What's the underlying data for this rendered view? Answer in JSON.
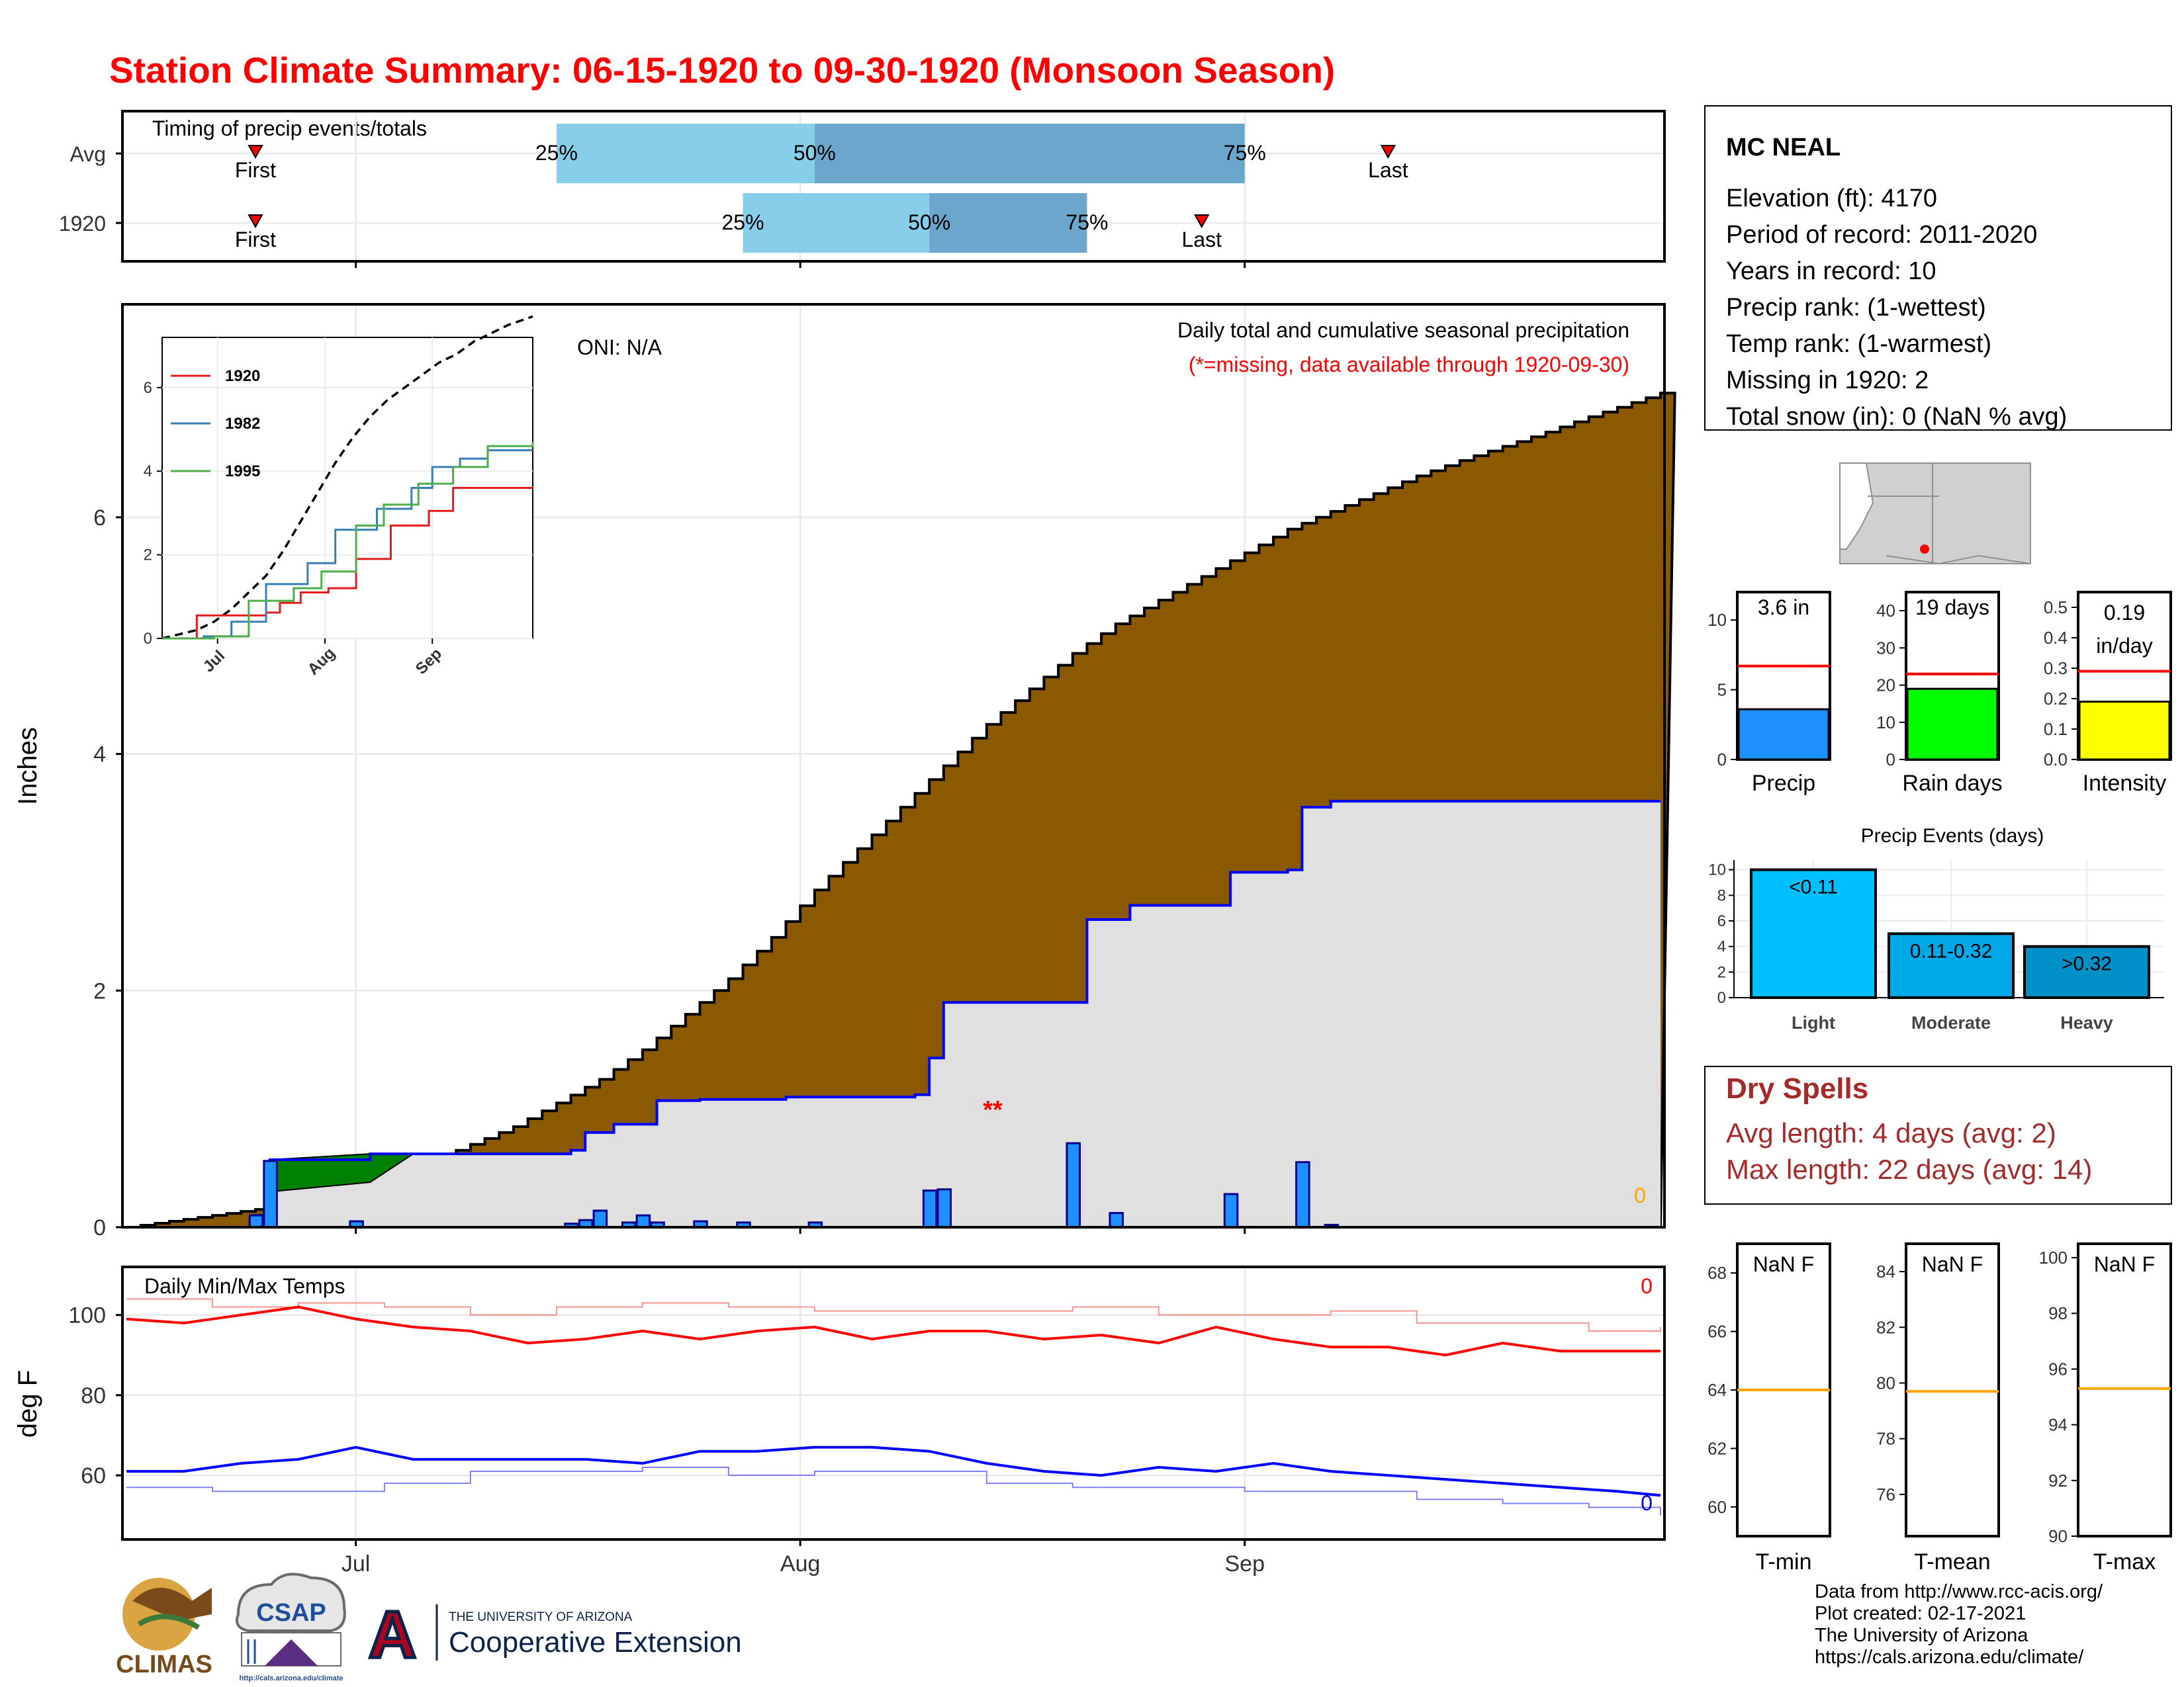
{
  "title": "Station Climate Summary: 06-15-1920 to 09-30-1920 (Monsoon Season)",
  "colors": {
    "title": "#ff0000",
    "cumulative_fill": "#8b5a00",
    "avg_fill": "#e0e0e0",
    "daily_bar": "#1e90ff",
    "surplus_green": "#008000",
    "tmax": "#ff0000",
    "tmin": "#0000ff",
    "avg_line": "#ff0000",
    "orange": "#ffa500",
    "dry_spell": "#a52a2a"
  },
  "timing_panel": {
    "label": "Timing of precip events/totals",
    "rows": [
      {
        "name": "Avg",
        "first_label": "First",
        "last_label": "Last",
        "q25": "25%",
        "q50": "50%",
        "q75": "75%",
        "first_day": 9,
        "q25_day": 30,
        "q50_day": 48,
        "q75_day": 78,
        "last_day": 88
      },
      {
        "name": "1920",
        "first_label": "First",
        "last_label": "Last",
        "q25": "25%",
        "q50": "50%",
        "q75": "75%",
        "first_day": 9,
        "q25_day": 43,
        "q50_day": 56,
        "q75_day": 67,
        "last_day": 75
      }
    ]
  },
  "main_panel": {
    "ylabel": "Inches",
    "oni": "ONI: N/A",
    "subtitle": "Daily total and cumulative seasonal precipitation",
    "missing_note": "(*=missing, data available through 1920-09-30)",
    "missing_marker": "**",
    "snow_zero": "0",
    "yticks": [
      "0",
      "2",
      "4",
      "6"
    ]
  },
  "months": [
    "Jul",
    "Aug",
    "Sep"
  ],
  "inset": {
    "legend": [
      "1920",
      "1982",
      "1995"
    ],
    "legend_colors": [
      "#e41a1c",
      "#377eb8",
      "#4daf4a"
    ],
    "yticks": [
      "0",
      "2",
      "4",
      "6"
    ],
    "months": [
      "Jul",
      "Aug",
      "Sep"
    ]
  },
  "temps_panel": {
    "label": "Daily Min/Max Temps",
    "ylabel": "deg F",
    "yticks": [
      "60",
      "80",
      "100"
    ],
    "tmax_missing": "0",
    "tmin_missing": "0"
  },
  "station": {
    "name": "MC NEAL",
    "lines": [
      "Elevation (ft): 4170",
      "Period of record: 2011-2020",
      "Years in record: 10",
      "Precip rank:  (1-wettest)",
      "Temp rank:  (1-warmest)",
      "Missing in 1920: 2",
      "Total snow (in): 0 (NaN % avg)"
    ]
  },
  "summary_bars": [
    {
      "label": "Precip",
      "value_label": "3.6 in",
      "value": 3.6,
      "avg": 6.7,
      "max": 12,
      "ticks": [
        "0",
        "5",
        "10"
      ],
      "tick_vals": [
        0,
        5,
        10
      ],
      "color": "#1e90ff"
    },
    {
      "label": "Rain days",
      "value_label": "19 days",
      "value": 19,
      "avg": 23,
      "max": 45,
      "ticks": [
        "0",
        "10",
        "20",
        "30",
        "40"
      ],
      "tick_vals": [
        0,
        10,
        20,
        30,
        40
      ],
      "color": "#00ff00"
    },
    {
      "label": "Intensity",
      "value_label": "0.19 in/day",
      "value_line1": "0.19",
      "value_line2": "in/day",
      "value": 0.19,
      "avg": 0.29,
      "max": 0.55,
      "ticks": [
        "0.0",
        "0.1",
        "0.2",
        "0.3",
        "0.4",
        "0.5"
      ],
      "tick_vals": [
        0,
        0.1,
        0.2,
        0.3,
        0.4,
        0.5
      ],
      "color": "#ffff00"
    }
  ],
  "events": {
    "title": "Precip Events (days)",
    "categories": [
      "Light",
      "Moderate",
      "Heavy"
    ],
    "bar_labels": [
      "<0.11",
      "0.11-0.32",
      ">0.32"
    ],
    "values": [
      10,
      5,
      4
    ],
    "colors": [
      "#00bfff",
      "#00a8e8",
      "#0090c8"
    ],
    "yticks": [
      "0",
      "2",
      "4",
      "6",
      "8",
      "10"
    ]
  },
  "dry_spells": {
    "title": "Dry Spells",
    "avg_length": "Avg length: 4 days (avg: 2)",
    "max_length": "Max length: 22 days (avg: 14)"
  },
  "temp_summary": [
    {
      "label": "T-min",
      "value_label": "NaN F",
      "avg": 64.0,
      "min": 59,
      "max": 69,
      "ticks": [
        "60",
        "62",
        "64",
        "66",
        "68"
      ],
      "tick_vals": [
        60,
        62,
        64,
        66,
        68
      ]
    },
    {
      "label": "T-mean",
      "value_label": "NaN F",
      "avg": 79.7,
      "min": 74.5,
      "max": 85,
      "ticks": [
        "76",
        "78",
        "80",
        "82",
        "84"
      ],
      "tick_vals": [
        76,
        78,
        80,
        82,
        84
      ]
    },
    {
      "label": "T-max",
      "value_label": "NaN F",
      "avg": 95.3,
      "min": 90,
      "max": 100.5,
      "ticks": [
        "90",
        "92",
        "94",
        "96",
        "98",
        "100"
      ],
      "tick_vals": [
        90,
        92,
        94,
        96,
        98,
        100
      ]
    }
  ],
  "footer": {
    "lines": [
      "Data from http://www.rcc-acis.org/",
      "Plot created: 02-17-2021",
      "The University of Arizona",
      "https://cals.arizona.edu/climate/"
    ]
  },
  "logos": {
    "climas": "CLIMAS",
    "csap": "CSAP",
    "csap_url": "http://cals.arizona.edu/climate",
    "ua_small": "THE UNIVERSITY OF ARIZONA",
    "ua_large": "Cooperative Extension",
    "ua_letter": "A"
  },
  "chart_data": {
    "type": "area",
    "title": "Station Climate Summary: 06-15-1920 to 09-30-1920 (Monsoon Season)",
    "subtitle": "Daily total and cumulative seasonal precipitation",
    "ylabel": "Inches",
    "ylim": [
      0,
      7.8
    ],
    "x_start": "1920-06-15",
    "x_end": "1920-09-30",
    "avg_cumulative": [
      [
        0,
        0
      ],
      [
        3,
        0.05
      ],
      [
        6,
        0.1
      ],
      [
        9,
        0.15
      ],
      [
        12,
        0.2
      ],
      [
        15,
        0.3
      ],
      [
        18,
        0.4
      ],
      [
        21,
        0.55
      ],
      [
        24,
        0.7
      ],
      [
        27,
        0.85
      ],
      [
        30,
        1.05
      ],
      [
        33,
        1.25
      ],
      [
        36,
        1.5
      ],
      [
        39,
        1.8
      ],
      [
        42,
        2.1
      ],
      [
        45,
        2.45
      ],
      [
        48,
        2.85
      ],
      [
        51,
        3.2
      ],
      [
        54,
        3.55
      ],
      [
        57,
        3.9
      ],
      [
        60,
        4.25
      ],
      [
        63,
        4.55
      ],
      [
        66,
        4.85
      ],
      [
        69,
        5.1
      ],
      [
        72,
        5.3
      ],
      [
        75,
        5.5
      ],
      [
        78,
        5.7
      ],
      [
        81,
        5.9
      ],
      [
        84,
        6.05
      ],
      [
        87,
        6.2
      ],
      [
        90,
        6.35
      ],
      [
        93,
        6.48
      ],
      [
        96,
        6.6
      ],
      [
        99,
        6.72
      ],
      [
        102,
        6.85
      ],
      [
        105,
        6.97
      ],
      [
        107,
        7.05
      ]
    ],
    "cumulative_1920": [
      [
        0,
        0
      ],
      [
        9,
        0.1
      ],
      [
        10,
        0.57
      ],
      [
        17,
        0.62
      ],
      [
        30,
        0.62
      ],
      [
        31,
        0.65
      ],
      [
        32,
        0.8
      ],
      [
        34,
        0.87
      ],
      [
        35,
        0.87
      ],
      [
        37,
        1.07
      ],
      [
        40,
        1.08
      ],
      [
        46,
        1.1
      ],
      [
        50,
        1.1
      ],
      [
        55,
        1.12
      ],
      [
        56,
        1.43
      ],
      [
        57,
        1.9
      ],
      [
        66,
        1.9
      ],
      [
        67,
        2.6
      ],
      [
        70,
        2.72
      ],
      [
        77,
        3.0
      ],
      [
        81,
        3.02
      ],
      [
        82,
        3.55
      ],
      [
        84,
        3.6
      ],
      [
        107,
        3.6
      ]
    ],
    "daily_1920": [
      [
        9,
        0.1
      ],
      [
        10,
        0.56
      ],
      [
        16,
        0.05
      ],
      [
        31,
        0.03
      ],
      [
        32,
        0.06
      ],
      [
        33,
        0.14
      ],
      [
        35,
        0.04
      ],
      [
        36,
        0.1
      ],
      [
        37,
        0.04
      ],
      [
        40,
        0.05
      ],
      [
        43,
        0.04
      ],
      [
        48,
        0.04
      ],
      [
        56,
        0.31
      ],
      [
        57,
        0.32
      ],
      [
        66,
        0.71
      ],
      [
        69,
        0.12
      ],
      [
        77,
        0.28
      ],
      [
        82,
        0.55
      ],
      [
        84,
        0.02
      ]
    ],
    "tmax_1920": [
      [
        0,
        99
      ],
      [
        4,
        98
      ],
      [
        8,
        100
      ],
      [
        12,
        102
      ],
      [
        16,
        99
      ],
      [
        20,
        97
      ],
      [
        24,
        96
      ],
      [
        28,
        93
      ],
      [
        32,
        94
      ],
      [
        36,
        96
      ],
      [
        40,
        94
      ],
      [
        44,
        96
      ],
      [
        48,
        97
      ],
      [
        52,
        94
      ],
      [
        56,
        96
      ],
      [
        60,
        96
      ],
      [
        64,
        94
      ],
      [
        68,
        95
      ],
      [
        72,
        93
      ],
      [
        76,
        97
      ],
      [
        80,
        94
      ],
      [
        84,
        92
      ],
      [
        88,
        92
      ],
      [
        92,
        90
      ],
      [
        96,
        93
      ],
      [
        100,
        91
      ],
      [
        104,
        91
      ],
      [
        107,
        91
      ]
    ],
    "tmin_1920": [
      [
        0,
        61
      ],
      [
        4,
        61
      ],
      [
        8,
        63
      ],
      [
        12,
        64
      ],
      [
        16,
        67
      ],
      [
        20,
        64
      ],
      [
        24,
        64
      ],
      [
        28,
        64
      ],
      [
        32,
        64
      ],
      [
        36,
        63
      ],
      [
        40,
        66
      ],
      [
        44,
        66
      ],
      [
        48,
        67
      ],
      [
        52,
        67
      ],
      [
        56,
        66
      ],
      [
        60,
        63
      ],
      [
        64,
        61
      ],
      [
        68,
        60
      ],
      [
        72,
        62
      ],
      [
        76,
        61
      ],
      [
        80,
        63
      ],
      [
        84,
        61
      ],
      [
        88,
        60
      ],
      [
        92,
        59
      ],
      [
        96,
        58
      ],
      [
        100,
        57
      ],
      [
        104,
        56
      ],
      [
        107,
        55
      ]
    ],
    "tmax_avg": [
      [
        0,
        104
      ],
      [
        6,
        102
      ],
      [
        12,
        103
      ],
      [
        18,
        102
      ],
      [
        24,
        100
      ],
      [
        30,
        102
      ],
      [
        36,
        103
      ],
      [
        42,
        102
      ],
      [
        48,
        101
      ],
      [
        54,
        101
      ],
      [
        60,
        101
      ],
      [
        66,
        102
      ],
      [
        72,
        100
      ],
      [
        78,
        100
      ],
      [
        84,
        101
      ],
      [
        90,
        98
      ],
      [
        96,
        98
      ],
      [
        102,
        96
      ],
      [
        107,
        97
      ]
    ],
    "tmin_avg": [
      [
        0,
        57
      ],
      [
        6,
        56
      ],
      [
        12,
        56
      ],
      [
        18,
        58
      ],
      [
        24,
        61
      ],
      [
        30,
        61
      ],
      [
        36,
        62
      ],
      [
        42,
        60
      ],
      [
        48,
        61
      ],
      [
        54,
        61
      ],
      [
        60,
        58
      ],
      [
        66,
        57
      ],
      [
        72,
        57
      ],
      [
        78,
        56
      ],
      [
        84,
        56
      ],
      [
        90,
        54
      ],
      [
        96,
        53
      ],
      [
        102,
        52
      ],
      [
        107,
        50
      ]
    ],
    "inset_series": {
      "avg_x": [
        0,
        5,
        10,
        15,
        20,
        25,
        30,
        35,
        40,
        45,
        50,
        55,
        60,
        65,
        70,
        75,
        80,
        85,
        90,
        95,
        100,
        107
      ],
      "avg_y": [
        0,
        0.1,
        0.2,
        0.4,
        0.7,
        1.1,
        1.5,
        2.1,
        2.8,
        3.5,
        4.2,
        4.8,
        5.3,
        5.7,
        6.0,
        6.3,
        6.6,
        6.8,
        7.1,
        7.3,
        7.5,
        7.7
      ],
      "y1920": [
        [
          0,
          0
        ],
        [
          10,
          0.55
        ],
        [
          30,
          0.62
        ],
        [
          34,
          0.85
        ],
        [
          40,
          1.1
        ],
        [
          48,
          1.2
        ],
        [
          56,
          1.9
        ],
        [
          66,
          2.7
        ],
        [
          77,
          3.05
        ],
        [
          84,
          3.6
        ],
        [
          107,
          3.6
        ]
      ],
      "y1982": [
        [
          0,
          0
        ],
        [
          12,
          0.05
        ],
        [
          20,
          0.4
        ],
        [
          30,
          1.3
        ],
        [
          42,
          1.8
        ],
        [
          50,
          2.6
        ],
        [
          62,
          3.1
        ],
        [
          72,
          3.6
        ],
        [
          78,
          4.1
        ],
        [
          86,
          4.3
        ],
        [
          94,
          4.5
        ],
        [
          107,
          4.5
        ]
      ],
      "y1995": [
        [
          0,
          0
        ],
        [
          15,
          0.05
        ],
        [
          25,
          0.9
        ],
        [
          38,
          1.2
        ],
        [
          46,
          1.6
        ],
        [
          56,
          2.7
        ],
        [
          64,
          3.2
        ],
        [
          74,
          3.7
        ],
        [
          84,
          4.1
        ],
        [
          94,
          4.6
        ],
        [
          107,
          4.7
        ]
      ]
    }
  }
}
